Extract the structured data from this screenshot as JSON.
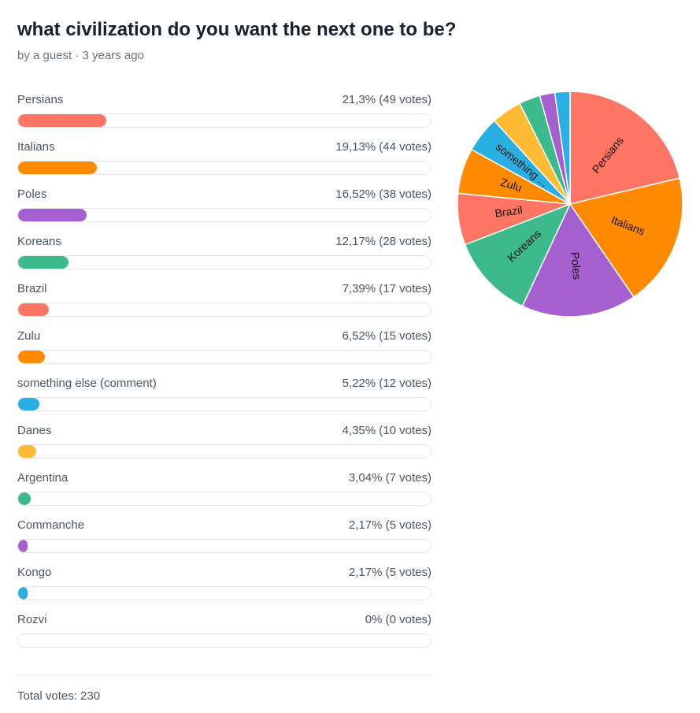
{
  "poll": {
    "title": "what civilization do you want the next one to be?",
    "subtitle": "by a guest · 3 years ago",
    "total_label": "Total votes: 230"
  },
  "chart_data": {
    "type": "pie",
    "slices": [
      {
        "label": "Persians",
        "value": 49,
        "percent_label": "21,3%",
        "votes_label": "(49 votes)",
        "color": "#ff7563",
        "pie_label": "Persians"
      },
      {
        "label": "Italians",
        "value": 44,
        "percent_label": "19,13%",
        "votes_label": "(44 votes)",
        "color": "#ff8a00",
        "pie_label": "Italians"
      },
      {
        "label": "Poles",
        "value": 38,
        "percent_label": "16,52%",
        "votes_label": "(38 votes)",
        "color": "#a65fcf",
        "pie_label": "Poles"
      },
      {
        "label": "Koreans",
        "value": 28,
        "percent_label": "12,17%",
        "votes_label": "(28 votes)",
        "color": "#3dba8c",
        "pie_label": "Koreans"
      },
      {
        "label": "Brazil",
        "value": 17,
        "percent_label": "7,39%",
        "votes_label": "(17 votes)",
        "color": "#ff7563",
        "pie_label": "Brazil"
      },
      {
        "label": "Zulu",
        "value": 15,
        "percent_label": "6,52%",
        "votes_label": "(15 votes)",
        "color": "#ff8a00",
        "pie_label": "Zulu"
      },
      {
        "label": "something else (comment)",
        "value": 12,
        "percent_label": "5,22%",
        "votes_label": "(12 votes)",
        "color": "#2aafe3",
        "pie_label": "something ..."
      },
      {
        "label": "Danes",
        "value": 10,
        "percent_label": "4,35%",
        "votes_label": "(10 votes)",
        "color": "#ffbb33",
        "pie_label": ""
      },
      {
        "label": "Argentina",
        "value": 7,
        "percent_label": "3,04%",
        "votes_label": "(7 votes)",
        "color": "#3dba8c",
        "pie_label": ""
      },
      {
        "label": "Commanche",
        "value": 5,
        "percent_label": "2,17%",
        "votes_label": "(5 votes)",
        "color": "#a65fcf",
        "pie_label": ""
      },
      {
        "label": "Kongo",
        "value": 5,
        "percent_label": "2,17%",
        "votes_label": "(5 votes)",
        "color": "#2aafe3",
        "pie_label": ""
      },
      {
        "label": "Rozvi",
        "value": 0,
        "percent_label": "0%",
        "votes_label": "(0 votes)",
        "color": "#ff7563",
        "pie_label": ""
      }
    ],
    "total": 230
  }
}
